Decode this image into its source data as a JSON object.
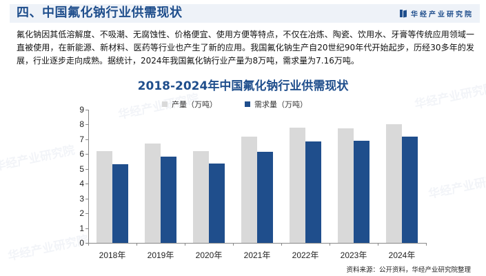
{
  "header": {
    "title": "四、中国氟化钠行业供需现状",
    "brand": "华经产业研究院"
  },
  "intro_text": "氟化钠因其低溶解度、不吸潮、无腐蚀性、价格便宜、使用方便等特点，不仅在冶炼、陶瓷、饮用水、牙膏等传统应用领域一直被使用，在新能源、新材料、医药等行业也产生了新的应用。我国氟化钠生产自20世纪90年代开始起步，历经30多年的发展，行业逐步走向成熟。据统计，2024年我国氟化钠行业产量为8万吨，需求量为7.16万吨。",
  "source": "资料来源：公开资料，华经产业研究院整理",
  "watermark": "华经产业研究院",
  "colors": {
    "production": "#d9d9d9",
    "demand": "#1f4e8c",
    "title": "#1f4e8c"
  },
  "chart_data": {
    "type": "bar",
    "title": "2018-2024年中国氟化钠行业供需现状",
    "categories": [
      "2018年",
      "2019年",
      "2020年",
      "2021年",
      "2022年",
      "2023年",
      "2024年"
    ],
    "series": [
      {
        "name": "产量（万吨）",
        "color": "#d9d9d9",
        "values": [
          6.2,
          6.7,
          6.2,
          7.2,
          7.8,
          7.75,
          8
        ]
      },
      {
        "name": "需求量（万吨）",
        "color": "#1f4e8c",
        "values": [
          5.3,
          5.85,
          5.35,
          6.15,
          6.85,
          6.9,
          7.16
        ]
      }
    ],
    "xlabel": "",
    "ylabel": "",
    "ylim": [
      0,
      9
    ],
    "yticks": [
      0,
      1,
      2,
      3,
      4,
      5,
      6,
      7,
      8,
      9
    ],
    "grid": false,
    "legend_position": "top"
  }
}
